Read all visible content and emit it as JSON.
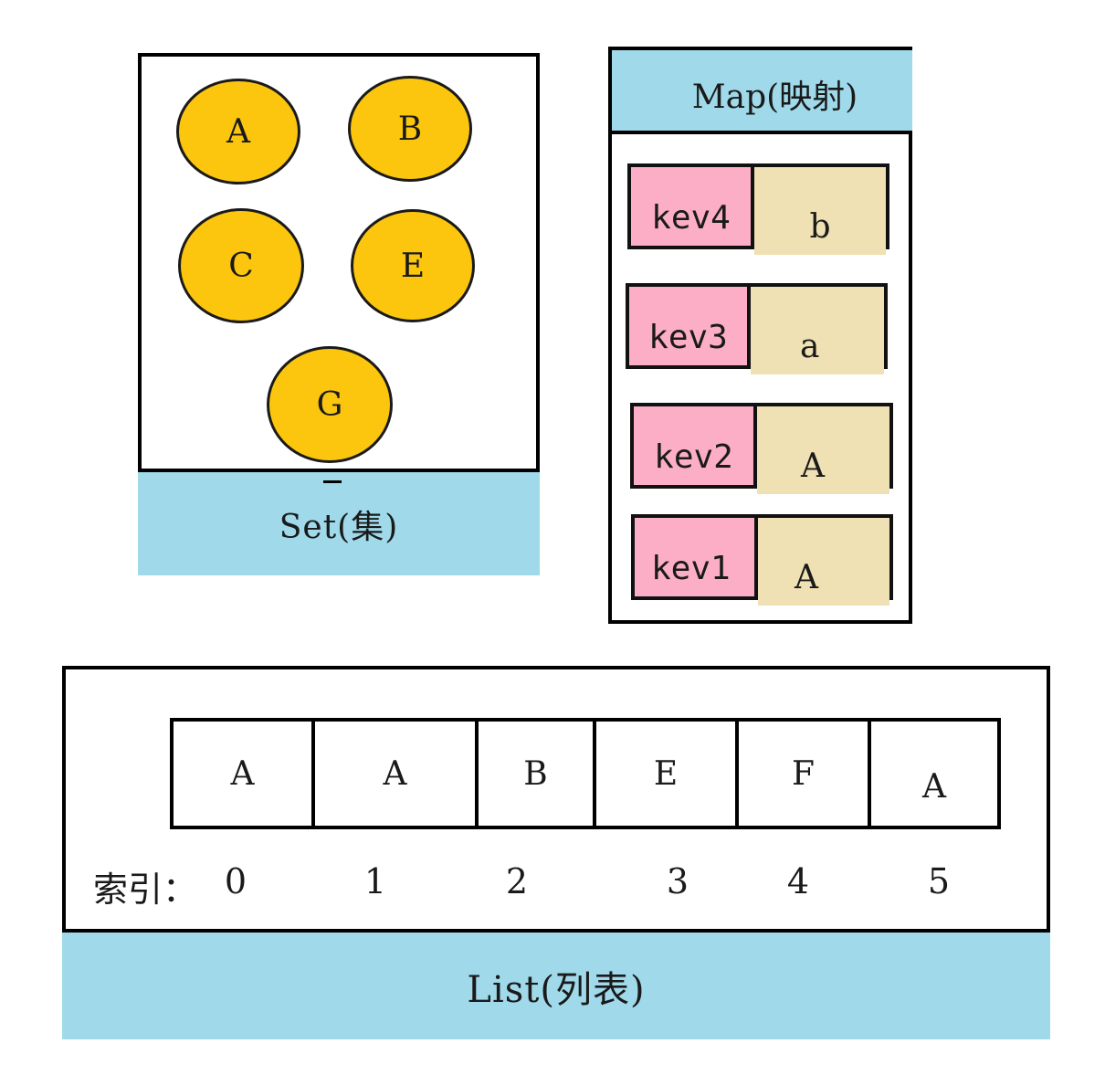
{
  "set": {
    "label": "Set(集)",
    "elements": [
      "A",
      "B",
      "C",
      "E",
      "G"
    ]
  },
  "map": {
    "label": "Map(映射)",
    "entries": [
      {
        "key": "kev4",
        "value": "b"
      },
      {
        "key": "kev3",
        "value": "a"
      },
      {
        "key": "kev2",
        "value": "A"
      },
      {
        "key": "kev1",
        "value": "A"
      }
    ]
  },
  "list": {
    "label": "List(列表)",
    "index_label": "索引：",
    "items": [
      "A",
      "A",
      "B",
      "E",
      "F",
      "A"
    ],
    "indices": [
      "0",
      "1",
      "2",
      "3",
      "4",
      "5"
    ]
  },
  "colors": {
    "circle_fill": "#fcc60f",
    "label_bar": "#9fd9ea",
    "map_key": "#fcaec7",
    "map_value": "#efe1b3"
  }
}
